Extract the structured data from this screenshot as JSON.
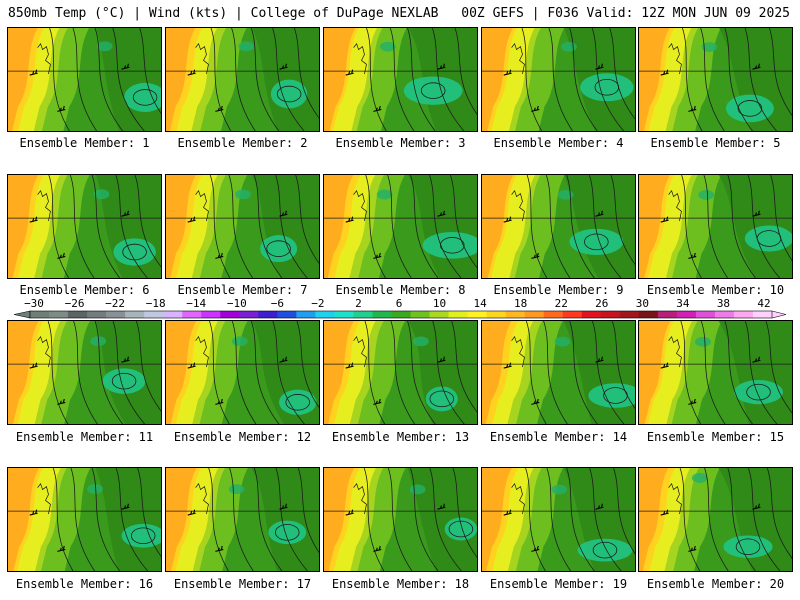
{
  "header": {
    "left": "850mb Temp (°C) | Wind (kts) | College of DuPage NEXLAB",
    "right": "00Z GEFS | F036 Valid: 12Z MON JUN 09 2025"
  },
  "member_label_prefix": "Ensemble Member: ",
  "members": [
    {
      "label": "Ensemble Member: 1"
    },
    {
      "label": "Ensemble Member: 2"
    },
    {
      "label": "Ensemble Member: 3"
    },
    {
      "label": "Ensemble Member: 4"
    },
    {
      "label": "Ensemble Member: 5"
    },
    {
      "label": "Ensemble Member: 6"
    },
    {
      "label": "Ensemble Member: 7"
    },
    {
      "label": "Ensemble Member: 8"
    },
    {
      "label": "Ensemble Member: 9"
    },
    {
      "label": "Ensemble Member: 10"
    },
    {
      "label": "Ensemble Member: 11"
    },
    {
      "label": "Ensemble Member: 12"
    },
    {
      "label": "Ensemble Member: 13"
    },
    {
      "label": "Ensemble Member: 14"
    },
    {
      "label": "Ensemble Member: 15"
    },
    {
      "label": "Ensemble Member: 16"
    },
    {
      "label": "Ensemble Member: 17"
    },
    {
      "label": "Ensemble Member: 18"
    },
    {
      "label": "Ensemble Member: 19"
    },
    {
      "label": "Ensemble Member: 20"
    }
  ],
  "colorbar": {
    "ticks": [
      "−30",
      "−26",
      "−22",
      "−18",
      "−14",
      "−10",
      "−6",
      "−2",
      "2",
      "6",
      "10",
      "14",
      "18",
      "22",
      "26",
      "30",
      "34",
      "38",
      "42"
    ],
    "colors": [
      "#6f7f78",
      "#7e8c86",
      "#5c6466",
      "#747c80",
      "#8a9096",
      "#a8b4bc",
      "#bfc8e0",
      "#d9b3ff",
      "#e066ff",
      "#cc33ff",
      "#a300d9",
      "#7a1fd1",
      "#3d1fd1",
      "#1f4fe0",
      "#1f9ff0",
      "#1fd1f0",
      "#1fe0c8",
      "#1fd18c",
      "#1fb84f",
      "#3ca81f",
      "#6fc21f",
      "#a8d91f",
      "#e0f01f",
      "#fff21f",
      "#ffd61f",
      "#ffb81f",
      "#ff9a1f",
      "#ff6a1f",
      "#ff3a1f",
      "#e0141f",
      "#c8141f",
      "#a3141f",
      "#7a1414",
      "#b81f7a",
      "#d11fb8",
      "#e04fd9",
      "#f07ae8",
      "#ffa8f0",
      "#ffd1ff"
    ]
  }
}
